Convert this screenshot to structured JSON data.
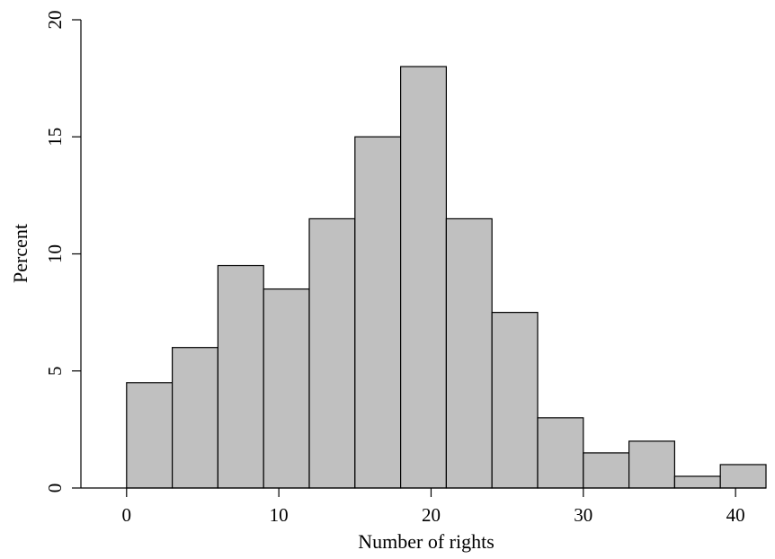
{
  "chart_data": {
    "type": "bar",
    "histogram": true,
    "xlabel": "Number of rights",
    "ylabel": "Percent",
    "xlim": [
      -3,
      42
    ],
    "ylim": [
      0,
      20
    ],
    "xticks": [
      0,
      10,
      20,
      30,
      40
    ],
    "yticks": [
      0,
      5,
      10,
      15,
      20
    ],
    "bin_width": 3,
    "bins": [
      {
        "x0": 0,
        "x1": 3,
        "value": 4.5
      },
      {
        "x0": 3,
        "x1": 6,
        "value": 6
      },
      {
        "x0": 6,
        "x1": 9,
        "value": 9.5
      },
      {
        "x0": 9,
        "x1": 12,
        "value": 8.5
      },
      {
        "x0": 12,
        "x1": 15,
        "value": 11.5
      },
      {
        "x0": 15,
        "x1": 18,
        "value": 15
      },
      {
        "x0": 18,
        "x1": 21,
        "value": 18
      },
      {
        "x0": 21,
        "x1": 24,
        "value": 11.5
      },
      {
        "x0": 24,
        "x1": 27,
        "value": 7.5
      },
      {
        "x0": 27,
        "x1": 30,
        "value": 3
      },
      {
        "x0": 30,
        "x1": 33,
        "value": 1.5
      },
      {
        "x0": 33,
        "x1": 36,
        "value": 2
      },
      {
        "x0": 36,
        "x1": 39,
        "value": 0.5
      },
      {
        "x0": 39,
        "x1": 42,
        "value": 1
      }
    ],
    "bar_color": "#c0c0c0",
    "grid": false,
    "legend": "none"
  }
}
